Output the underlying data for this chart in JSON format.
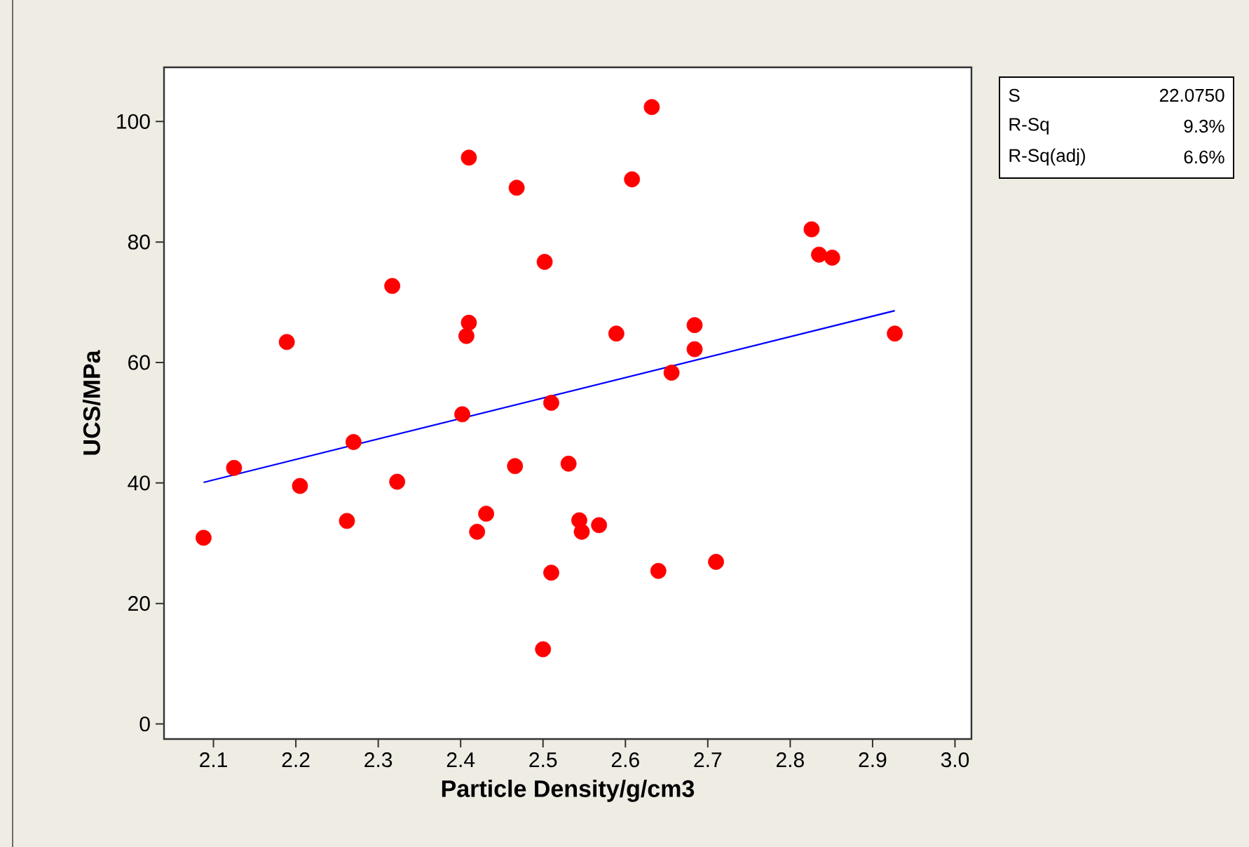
{
  "chart_data": {
    "type": "scatter",
    "xlabel": "Particle Density/g/cm3",
    "ylabel": "UCS/MPa",
    "xlim": [
      2.04,
      3.02
    ],
    "ylim": [
      -2.5,
      109
    ],
    "xticks": [
      2.1,
      2.2,
      2.3,
      2.4,
      2.5,
      2.6,
      2.7,
      2.8,
      2.9,
      {
        "value": 3,
        "label": "3.0"
      }
    ],
    "yticks": [
      0,
      20,
      40,
      60,
      80,
      100
    ],
    "marker": "circle",
    "series": [
      {
        "color": "#ff0000",
        "x": [
          2.088,
          2.125,
          2.189,
          2.205,
          2.262,
          2.27,
          2.317,
          2.323,
          2.402,
          2.41,
          2.41,
          2.407,
          2.431,
          2.42,
          2.468,
          2.466,
          2.502,
          2.51,
          2.51,
          2.5,
          2.531,
          2.544,
          2.547,
          2.568,
          2.589,
          2.608,
          2.632,
          2.64,
          2.656,
          2.684,
          2.684,
          2.71,
          2.826,
          2.835,
          2.851,
          2.927
        ],
        "values": [
          30.9,
          42.5,
          63.4,
          39.5,
          33.7,
          46.8,
          72.7,
          40.2,
          51.4,
          94.0,
          66.6,
          64.4,
          34.9,
          31.9,
          89.0,
          42.8,
          76.7,
          53.3,
          25.1,
          12.4,
          43.2,
          33.8,
          31.9,
          33.0,
          64.8,
          90.4,
          102.4,
          25.4,
          58.3,
          66.2,
          62.2,
          26.9,
          82.1,
          77.9,
          77.4,
          64.8
        ]
      },
      {
        "type": "line",
        "marker": "none",
        "color": "#0000ff",
        "x": [
          2.088,
          2.927
        ],
        "values": [
          40.1,
          68.6
        ]
      }
    ],
    "annotations": [
      "S",
      "22.0750",
      "R-Sq",
      "9.3%",
      "R-Sq(adj)",
      "6.6%"
    ]
  }
}
